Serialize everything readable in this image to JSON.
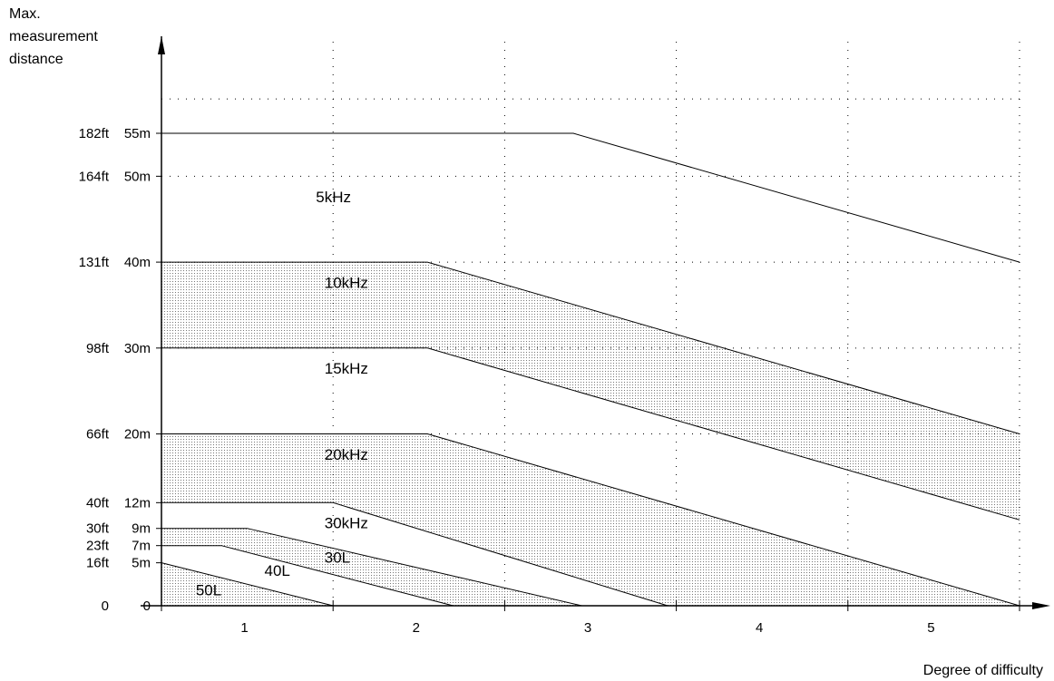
{
  "chart_data": {
    "type": "line",
    "ylabel": "Max.\nmeasurement\ndistance",
    "xlabel": "Degree of difficulty",
    "x_ticks": [
      "1",
      "2",
      "3",
      "4",
      "5"
    ],
    "y_ticks": [
      {
        "value": 0,
        "ft": "0",
        "m": "0"
      },
      {
        "value": 5,
        "ft": "16ft",
        "m": "5m"
      },
      {
        "value": 7,
        "ft": "23ft",
        "m": "7m"
      },
      {
        "value": 9,
        "ft": "30ft",
        "m": "9m"
      },
      {
        "value": 12,
        "ft": "40ft",
        "m": "12m"
      },
      {
        "value": 20,
        "ft": "66ft",
        "m": "20m"
      },
      {
        "value": 30,
        "ft": "98ft",
        "m": "30m"
      },
      {
        "value": 40,
        "ft": "131ft",
        "m": "40m"
      },
      {
        "value": 50,
        "ft": "164ft",
        "m": "50m"
      },
      {
        "value": 55,
        "ft": "182ft",
        "m": "55m"
      }
    ],
    "xlim": [
      0.5,
      5.5
    ],
    "ylim": [
      0,
      60
    ],
    "grid": true,
    "series": [
      {
        "name": "5kHz",
        "points": [
          [
            0.5,
            55
          ],
          [
            2.9,
            55
          ],
          [
            5.5,
            40
          ]
        ],
        "label_at": [
          1.4,
          47
        ],
        "shaded": false
      },
      {
        "name": "10kHz",
        "points": [
          [
            0.5,
            40
          ],
          [
            2.05,
            40
          ],
          [
            5.5,
            20
          ]
        ],
        "label_at": [
          1.45,
          37
        ],
        "shaded": true
      },
      {
        "name": "15kHz",
        "points": [
          [
            0.5,
            30
          ],
          [
            2.05,
            30
          ],
          [
            5.5,
            10
          ]
        ],
        "label_at": [
          1.45,
          27
        ],
        "shaded": false
      },
      {
        "name": "20kHz",
        "points": [
          [
            0.5,
            20
          ],
          [
            2.05,
            20
          ],
          [
            5.5,
            0
          ]
        ],
        "label_at": [
          1.45,
          17
        ],
        "shaded": true
      },
      {
        "name": "30kHz",
        "points": [
          [
            0.5,
            12
          ],
          [
            1.5,
            12
          ],
          [
            3.45,
            0
          ]
        ],
        "label_at": [
          1.45,
          9
        ],
        "shaded": false
      },
      {
        "name": "30L",
        "points": [
          [
            0.5,
            9
          ],
          [
            1.0,
            9
          ],
          [
            2.95,
            0
          ]
        ],
        "label_at": [
          1.45,
          5
        ],
        "shaded": true
      },
      {
        "name": "40L",
        "points": [
          [
            0.5,
            7
          ],
          [
            0.85,
            7
          ],
          [
            2.2,
            0
          ]
        ],
        "label_at": [
          1.1,
          3.5
        ],
        "shaded": false
      },
      {
        "name": "50L",
        "points": [
          [
            0.5,
            5
          ],
          [
            1.5,
            0
          ]
        ],
        "label_at": [
          0.7,
          1.2
        ],
        "shaded": true
      }
    ]
  }
}
